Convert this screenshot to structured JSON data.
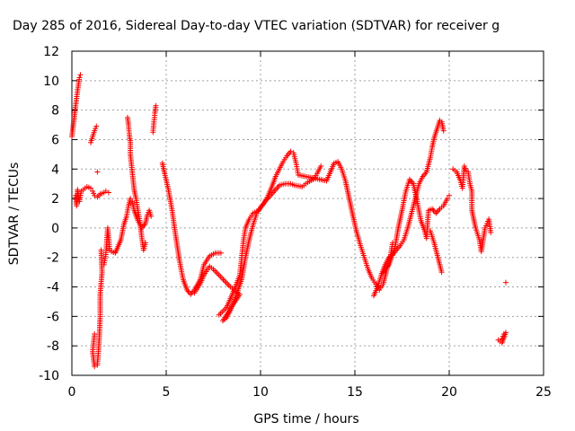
{
  "chart_data": {
    "type": "scatter",
    "title": "Day 285 of 2016, Sidereal Day-to-day VTEC variation (SDTVAR) for receiver g",
    "xlabel": "GPS time / hours",
    "ylabel": "SDTVAR / TECUs",
    "xlim": [
      0,
      25
    ],
    "ylim": [
      -10,
      12
    ],
    "xticks": [
      "0",
      "5",
      "10",
      "15",
      "20",
      "25"
    ],
    "yticks": [
      "-10",
      "-8",
      "-6",
      "-4",
      "-2",
      "0",
      "2",
      "4",
      "6",
      "8",
      "10",
      "12"
    ],
    "grid": true,
    "legend": "none",
    "marker": "plus",
    "color": "#ff0000",
    "series": [
      {
        "values": [
          [
            0.0,
            6.2
          ],
          [
            0.1,
            7.2
          ],
          [
            0.2,
            8.3
          ],
          [
            0.3,
            9.3
          ],
          [
            0.4,
            10.2
          ],
          [
            0.45,
            10.4
          ],
          [
            0.2,
            2.2
          ],
          [
            0.25,
            1.5
          ],
          [
            0.3,
            2.6
          ],
          [
            0.4,
            1.8
          ],
          [
            0.5,
            2.5
          ],
          [
            0.8,
            2.8
          ],
          [
            1.0,
            2.7
          ],
          [
            1.1,
            2.5
          ],
          [
            1.2,
            2.2
          ],
          [
            1.35,
            2.1
          ],
          [
            1.5,
            2.3
          ],
          [
            1.7,
            2.4
          ],
          [
            1.8,
            2.5
          ],
          [
            1.95,
            2.4
          ],
          [
            1.0,
            5.8
          ],
          [
            1.1,
            6.2
          ],
          [
            1.2,
            6.6
          ],
          [
            1.3,
            6.9
          ],
          [
            1.35,
            3.8
          ],
          [
            1.55,
            -1.5
          ],
          [
            1.6,
            -3.0
          ],
          [
            1.5,
            -4.5
          ],
          [
            1.5,
            -6.0
          ],
          [
            1.45,
            -7.5
          ],
          [
            1.4,
            -8.5
          ],
          [
            1.35,
            -9.3
          ],
          [
            1.2,
            -9.4
          ],
          [
            1.1,
            -8.4
          ],
          [
            1.2,
            -7.2
          ],
          [
            1.7,
            -2.5
          ],
          [
            1.8,
            -1.8
          ],
          [
            1.9,
            0.0
          ],
          [
            2.0,
            -1.5
          ],
          [
            2.1,
            -1.6
          ],
          [
            2.3,
            -1.7
          ],
          [
            2.6,
            -0.8
          ],
          [
            2.75,
            0.2
          ],
          [
            2.9,
            0.8
          ],
          [
            3.0,
            1.5
          ],
          [
            3.1,
            2.0
          ],
          [
            3.2,
            1.8
          ],
          [
            3.3,
            1.2
          ],
          [
            3.5,
            0.5
          ],
          [
            3.7,
            0.0
          ],
          [
            3.9,
            0.3
          ],
          [
            4.0,
            0.9
          ],
          [
            4.1,
            1.2
          ],
          [
            4.2,
            0.8
          ],
          [
            2.95,
            7.5
          ],
          [
            3.0,
            7.0
          ],
          [
            3.05,
            6.3
          ],
          [
            3.1,
            5.8
          ],
          [
            3.1,
            5.0
          ],
          [
            3.3,
            2.6
          ],
          [
            3.4,
            2.0
          ],
          [
            3.5,
            1.2
          ],
          [
            3.6,
            0.5
          ],
          [
            3.7,
            -0.6
          ],
          [
            3.8,
            -1.5
          ],
          [
            3.9,
            -1.0
          ],
          [
            4.3,
            6.5
          ],
          [
            4.35,
            7.2
          ],
          [
            4.4,
            7.8
          ],
          [
            4.45,
            8.3
          ],
          [
            4.8,
            4.4
          ],
          [
            4.9,
            3.8
          ],
          [
            5.1,
            2.7
          ],
          [
            5.3,
            1.3
          ],
          [
            5.5,
            -0.5
          ],
          [
            5.7,
            -2.2
          ],
          [
            5.9,
            -3.5
          ],
          [
            6.1,
            -4.2
          ],
          [
            6.3,
            -4.5
          ],
          [
            6.5,
            -4.2
          ],
          [
            6.8,
            -3.5
          ],
          [
            7.0,
            -2.5
          ],
          [
            7.3,
            -1.9
          ],
          [
            7.6,
            -1.7
          ],
          [
            7.9,
            -1.7
          ],
          [
            6.5,
            -4.4
          ],
          [
            6.8,
            -3.8
          ],
          [
            7.0,
            -3.2
          ],
          [
            7.3,
            -2.6
          ],
          [
            7.5,
            -2.8
          ],
          [
            7.8,
            -3.2
          ],
          [
            8.1,
            -3.6
          ],
          [
            8.4,
            -4.0
          ],
          [
            8.7,
            -4.3
          ],
          [
            8.9,
            -4.5
          ],
          [
            8.0,
            -6.3
          ],
          [
            8.2,
            -6.1
          ],
          [
            8.4,
            -5.6
          ],
          [
            8.7,
            -4.6
          ],
          [
            9.0,
            -3.5
          ],
          [
            9.2,
            -2.0
          ],
          [
            9.4,
            -0.8
          ],
          [
            9.6,
            0.2
          ],
          [
            9.8,
            1.0
          ],
          [
            10.0,
            1.4
          ],
          [
            10.3,
            1.9
          ],
          [
            10.6,
            2.3
          ],
          [
            10.8,
            2.6
          ],
          [
            11.0,
            2.9
          ],
          [
            11.3,
            3.0
          ],
          [
            11.6,
            3.0
          ],
          [
            11.8,
            2.9
          ],
          [
            12.2,
            2.8
          ],
          [
            12.5,
            3.1
          ],
          [
            12.8,
            3.3
          ],
          [
            13.0,
            3.7
          ],
          [
            13.2,
            4.2
          ],
          [
            7.8,
            -5.9
          ],
          [
            8.2,
            -5.4
          ],
          [
            8.6,
            -4.2
          ],
          [
            8.9,
            -3.2
          ],
          [
            9.0,
            -2.0
          ],
          [
            9.1,
            -0.8
          ],
          [
            9.2,
            0.0
          ],
          [
            9.4,
            0.6
          ],
          [
            9.6,
            1.0
          ],
          [
            9.9,
            1.2
          ],
          [
            10.2,
            1.7
          ],
          [
            10.4,
            2.2
          ],
          [
            10.6,
            2.8
          ],
          [
            10.8,
            3.5
          ],
          [
            11.0,
            4.0
          ],
          [
            11.2,
            4.5
          ],
          [
            11.4,
            4.9
          ],
          [
            11.6,
            5.2
          ],
          [
            11.75,
            5.1
          ],
          [
            11.9,
            4.3
          ],
          [
            12.0,
            3.6
          ],
          [
            13.5,
            3.2
          ],
          [
            13.7,
            3.8
          ],
          [
            13.9,
            4.4
          ],
          [
            14.1,
            4.5
          ],
          [
            14.3,
            4.0
          ],
          [
            14.5,
            3.2
          ],
          [
            14.7,
            2.0
          ],
          [
            14.9,
            0.8
          ],
          [
            15.1,
            -0.3
          ],
          [
            15.3,
            -1.2
          ],
          [
            15.5,
            -2.0
          ],
          [
            15.7,
            -2.8
          ],
          [
            15.9,
            -3.4
          ],
          [
            16.1,
            -3.8
          ],
          [
            16.3,
            -4.2
          ],
          [
            16.5,
            -3.8
          ],
          [
            16.7,
            -2.8
          ],
          [
            16.9,
            -1.8
          ],
          [
            17.0,
            -1.0
          ],
          [
            16.0,
            -4.6
          ],
          [
            16.2,
            -4.0
          ],
          [
            16.4,
            -3.2
          ],
          [
            16.6,
            -2.5
          ],
          [
            16.8,
            -2.0
          ],
          [
            17.0,
            -1.8
          ],
          [
            17.2,
            -1.5
          ],
          [
            17.4,
            -1.2
          ],
          [
            17.6,
            -0.8
          ],
          [
            17.8,
            0.0
          ],
          [
            18.0,
            1.0
          ],
          [
            18.2,
            2.0
          ],
          [
            18.4,
            3.0
          ],
          [
            18.6,
            3.5
          ],
          [
            18.8,
            3.8
          ],
          [
            19.0,
            4.8
          ],
          [
            19.1,
            5.5
          ],
          [
            19.2,
            6.1
          ],
          [
            19.35,
            6.7
          ],
          [
            19.5,
            7.3
          ],
          [
            19.6,
            7.2
          ],
          [
            19.7,
            6.6
          ],
          [
            16.5,
            -3.0
          ],
          [
            16.8,
            -2.5
          ],
          [
            17.1,
            -1.5
          ],
          [
            17.3,
            0.0
          ],
          [
            17.5,
            1.2
          ],
          [
            17.7,
            2.5
          ],
          [
            17.9,
            3.3
          ],
          [
            18.1,
            3.0
          ],
          [
            18.3,
            1.8
          ],
          [
            18.5,
            0.5
          ],
          [
            18.7,
            -0.2
          ],
          [
            18.8,
            -0.7
          ],
          [
            18.9,
            1.2
          ],
          [
            19.1,
            1.3
          ],
          [
            19.3,
            1.0
          ],
          [
            19.5,
            1.3
          ],
          [
            19.7,
            1.5
          ],
          [
            19.9,
            2.0
          ],
          [
            20.0,
            2.2
          ],
          [
            19.0,
            -0.2
          ],
          [
            19.2,
            -1.0
          ],
          [
            19.4,
            -2.0
          ],
          [
            19.6,
            -3.0
          ],
          [
            20.2,
            4.0
          ],
          [
            20.4,
            3.8
          ],
          [
            20.6,
            3.2
          ],
          [
            20.7,
            2.7
          ],
          [
            20.8,
            4.2
          ],
          [
            20.9,
            3.9
          ],
          [
            21.0,
            3.8
          ],
          [
            21.1,
            3.0
          ],
          [
            21.2,
            2.5
          ],
          [
            21.2,
            1.2
          ],
          [
            21.3,
            0.6
          ],
          [
            21.4,
            0.0
          ],
          [
            21.6,
            -0.8
          ],
          [
            21.7,
            -1.6
          ],
          [
            21.9,
            0.0
          ],
          [
            22.0,
            0.3
          ],
          [
            22.1,
            0.6
          ],
          [
            22.2,
            -0.3
          ],
          [
            22.6,
            -7.6
          ],
          [
            22.7,
            -7.7
          ],
          [
            22.8,
            -7.5
          ],
          [
            22.9,
            -7.2
          ],
          [
            23.0,
            -7.1
          ],
          [
            22.8,
            -7.8
          ],
          [
            23.0,
            -3.7
          ]
        ]
      }
    ]
  }
}
